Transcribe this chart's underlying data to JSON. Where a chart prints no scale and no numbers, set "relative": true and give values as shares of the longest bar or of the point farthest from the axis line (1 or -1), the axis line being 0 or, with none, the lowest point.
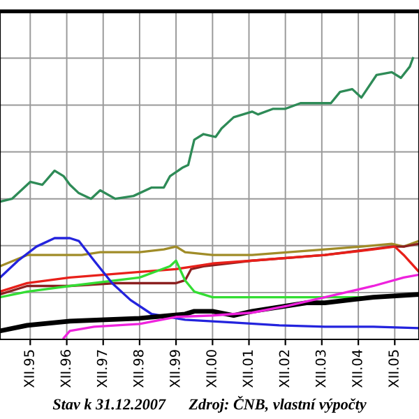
{
  "chart_data": {
    "type": "line",
    "relative": true,
    "grid": true,
    "xlim": [
      "1995-02",
      "2006-08"
    ],
    "xticks": [
      {
        "value": "1995-12",
        "label": "XII.95"
      },
      {
        "value": "1996-12",
        "label": "XII.96"
      },
      {
        "value": "1997-12",
        "label": "XII.97"
      },
      {
        "value": "1998-12",
        "label": "XII.98"
      },
      {
        "value": "1999-12",
        "label": "XII.99"
      },
      {
        "value": "2000-12",
        "label": "XII.00"
      },
      {
        "value": "2001-12",
        "label": "XII.01"
      },
      {
        "value": "2002-12",
        "label": "XII.02"
      },
      {
        "value": "2003-12",
        "label": "XII.03"
      },
      {
        "value": "2004-12",
        "label": "XII.04"
      },
      {
        "value": "2005-12",
        "label": "XII.05"
      }
    ],
    "annotations": [
      "Stav k 31.12.2007      Zdroj: ČNB, vlastní výpočty"
    ],
    "series": [
      {
        "color": "#2e8b57",
        "x": [
          "1995-02",
          "1995-06",
          "1995-12",
          "1996-04",
          "1996-08",
          "1996-11",
          "1997-01",
          "1997-04",
          "1997-08",
          "1997-11",
          "1998-04",
          "1998-10",
          "1999-04",
          "1999-08",
          "1999-10",
          "2000-02",
          "2000-04",
          "2000-06",
          "2000-09",
          "2001-01",
          "2001-03",
          "2001-07",
          "2001-10",
          "2002-01",
          "2002-03",
          "2002-08",
          "2002-12",
          "2003-05",
          "2003-12",
          "2004-03",
          "2004-06",
          "2004-10",
          "2005-01",
          "2005-06",
          "2005-11",
          "2006-02",
          "2006-05",
          "2006-06"
        ],
        "values": [
          0.49,
          0.5,
          0.56,
          0.55,
          0.6,
          0.58,
          0.55,
          0.52,
          0.5,
          0.53,
          0.5,
          0.51,
          0.54,
          0.54,
          0.58,
          0.61,
          0.62,
          0.71,
          0.73,
          0.72,
          0.75,
          0.79,
          0.8,
          0.81,
          0.8,
          0.82,
          0.82,
          0.84,
          0.84,
          0.84,
          0.88,
          0.89,
          0.86,
          0.94,
          0.95,
          0.93,
          0.97,
          1.0
        ]
      },
      {
        "color": "#a08c28",
        "x": [
          "1995-02",
          "1995-11",
          "1996-05",
          "1997-01",
          "1997-05",
          "1997-11",
          "1998-12",
          "1999-08",
          "1999-12",
          "2000-03",
          "2000-12",
          "2002-01",
          "2003-01",
          "2004-01",
          "2005-01",
          "2005-11",
          "2006-03",
          "2006-08"
        ],
        "values": [
          0.26,
          0.3,
          0.3,
          0.3,
          0.3,
          0.31,
          0.31,
          0.32,
          0.33,
          0.31,
          0.3,
          0.3,
          0.31,
          0.32,
          0.33,
          0.34,
          0.33,
          0.35
        ]
      },
      {
        "color": "#8b2020",
        "x": [
          "1995-02",
          "1995-11",
          "1997-01",
          "1998-04",
          "1999-12",
          "2000-03",
          "2000-05",
          "2000-09",
          "2002-01",
          "2004-01",
          "2005-11",
          "2006-03",
          "2006-08"
        ],
        "values": [
          0.16,
          0.19,
          0.19,
          0.2,
          0.2,
          0.21,
          0.25,
          0.26,
          0.28,
          0.3,
          0.33,
          0.33,
          0.34
        ]
      },
      {
        "color": "#e8201a",
        "x": [
          "1995-02",
          "1995-11",
          "1997-01",
          "1998-12",
          "1999-12",
          "2000-06",
          "2000-12",
          "2002-01",
          "2004-01",
          "2005-05",
          "2005-12",
          "2006-03",
          "2006-08"
        ],
        "values": [
          0.17,
          0.2,
          0.22,
          0.24,
          0.25,
          0.26,
          0.27,
          0.28,
          0.3,
          0.32,
          0.33,
          0.3,
          0.24
        ]
      },
      {
        "color": "#33dd33",
        "x": [
          "1995-02",
          "1995-11",
          "1997-01",
          "1998-12",
          "1999-10",
          "1999-12",
          "2000-03",
          "2000-06",
          "2000-12",
          "2002-01",
          "2003-01",
          "2004-01",
          "2005-05",
          "2006-08"
        ],
        "values": [
          0.15,
          0.17,
          0.19,
          0.22,
          0.26,
          0.28,
          0.21,
          0.17,
          0.15,
          0.15,
          0.15,
          0.15,
          0.15,
          0.16
        ]
      },
      {
        "color": "#2323dd",
        "x": [
          "1995-02",
          "1995-08",
          "1996-02",
          "1996-08",
          "1997-01",
          "1997-04",
          "1997-09",
          "1998-03",
          "1998-09",
          "1999-04",
          "2000-03",
          "2001-07",
          "2002-10",
          "2004-01",
          "2005-05",
          "2006-08"
        ],
        "values": [
          0.22,
          0.28,
          0.33,
          0.36,
          0.36,
          0.35,
          0.28,
          0.2,
          0.14,
          0.09,
          0.07,
          0.06,
          0.05,
          0.045,
          0.045,
          0.04
        ]
      },
      {
        "color": "#000000",
        "x": [
          "1995-02",
          "1995-11",
          "1997-01",
          "1998-12",
          "2000-03",
          "2000-06",
          "2000-12",
          "2001-07",
          "2002-01",
          "2003-07",
          "2004-01",
          "2005-05",
          "2006-08"
        ],
        "values": [
          0.03,
          0.05,
          0.065,
          0.075,
          0.09,
          0.1,
          0.1,
          0.085,
          0.1,
          0.13,
          0.13,
          0.15,
          0.16
        ]
      },
      {
        "color": "#ee22dd",
        "x": [
          "1996-11",
          "1997-01",
          "1997-09",
          "1998-12",
          "1999-12",
          "2000-12",
          "2002-01",
          "2003-01",
          "2004-01",
          "2005-05",
          "2006-03",
          "2006-08"
        ],
        "values": [
          0.005,
          0.03,
          0.045,
          0.055,
          0.08,
          0.085,
          0.095,
          0.12,
          0.15,
          0.19,
          0.22,
          0.23
        ]
      }
    ]
  }
}
